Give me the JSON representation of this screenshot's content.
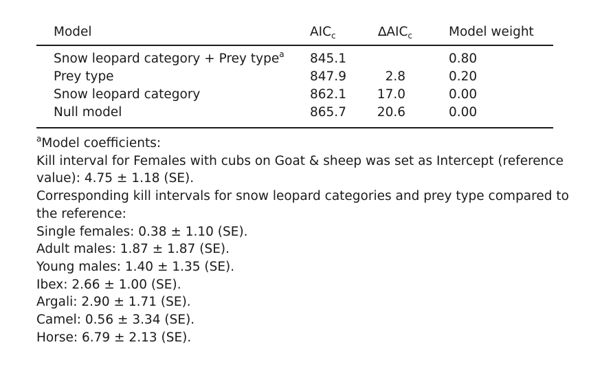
{
  "table": {
    "header": {
      "model": "Model",
      "aic_main": "AIC",
      "aic_sub": "c",
      "daic_delta": "∆",
      "daic_main": "AIC",
      "daic_sub": "c",
      "weight": "Model weight"
    },
    "rows": [
      {
        "model": "Snow leopard category + Prey type",
        "model_sup": "a",
        "aic": "845.1",
        "daic": "",
        "weight": "0.80"
      },
      {
        "model": "Prey type",
        "model_sup": "",
        "aic": "847.9",
        "daic": "2.8",
        "weight": "0.20"
      },
      {
        "model": "Snow leopard category",
        "model_sup": "",
        "aic": "862.1",
        "daic": "17.0",
        "weight": "0.00"
      },
      {
        "model": "Null model",
        "model_sup": "",
        "aic": "865.7",
        "daic": "20.6",
        "weight": "0.00"
      }
    ]
  },
  "footnote": {
    "marker": "a",
    "title": "Model coefficients:",
    "lines": [
      "Kill interval for Females with cubs on Goat & sheep was set as Intercept (reference",
      "value): 4.75 ± 1.18 (SE).",
      "Corresponding kill intervals for snow leopard categories and prey type compared to",
      "the reference:",
      "Single females: 0.38 ± 1.10 (SE).",
      "Adult males: 1.87 ± 1.87 (SE).",
      "Young males: 1.40 ± 1.35 (SE).",
      "Ibex: 2.66 ± 1.00 (SE).",
      "Argali: 2.90 ± 1.71 (SE).",
      "Camel: 0.56 ± 3.34 (SE).",
      "Horse: 6.79 ± 2.13 (SE)."
    ]
  }
}
